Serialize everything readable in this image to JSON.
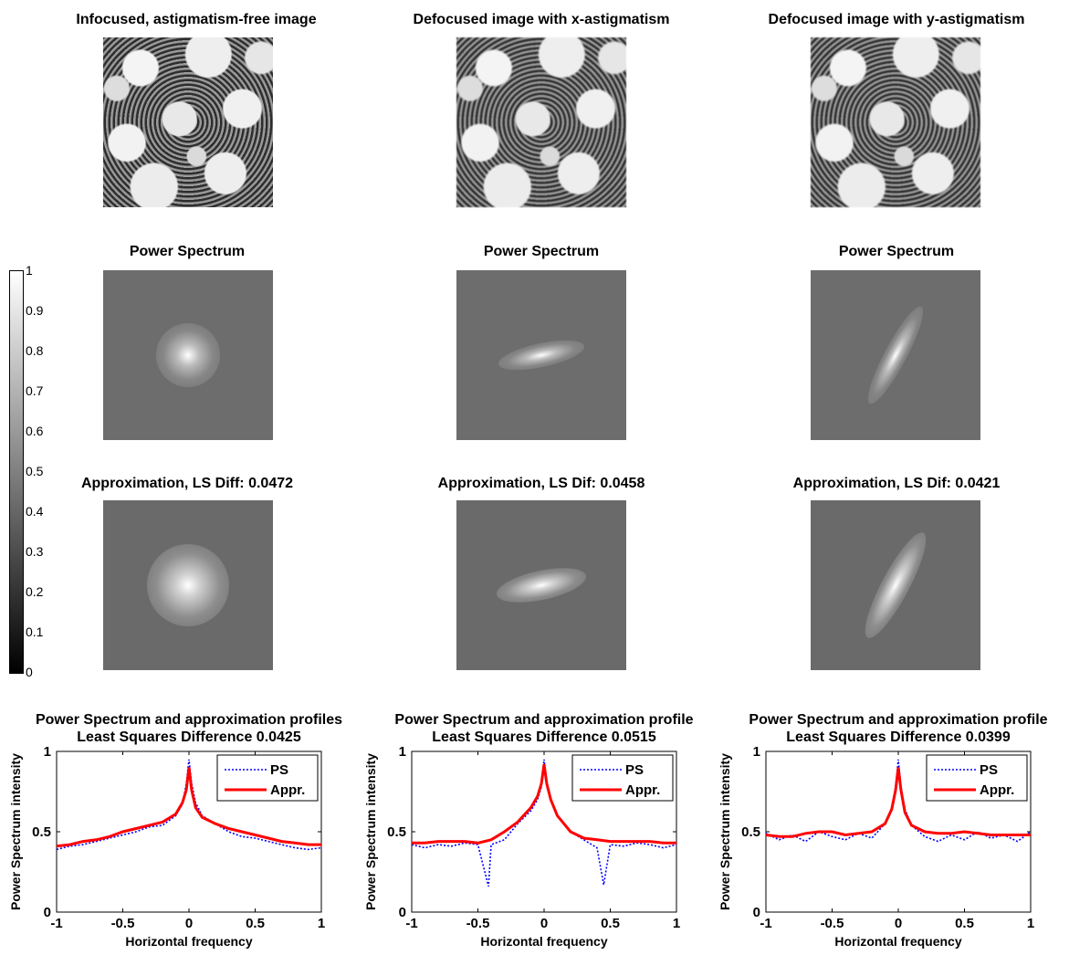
{
  "images": {
    "row1": [
      {
        "title": "Infocused, astigmatism-free image"
      },
      {
        "title": "Defocused image with x-astigmatism"
      },
      {
        "title": "Defocused image with y-astigmatism"
      }
    ],
    "row2": [
      {
        "title": "Power Spectrum"
      },
      {
        "title": "Power Spectrum"
      },
      {
        "title": "Power Spectrum"
      }
    ],
    "row3": [
      {
        "title": "Approximation, LS Diff: 0.0472"
      },
      {
        "title": "Approximation, LS Dif: 0.0458"
      },
      {
        "title": "Approximation, LS Dif: 0.0421"
      }
    ]
  },
  "colorbar": {
    "ticks": [
      "1",
      "0.9",
      "0.8",
      "0.7",
      "0.6",
      "0.5",
      "0.4",
      "0.3",
      "0.2",
      "0.1",
      "0"
    ]
  },
  "chart_data": [
    {
      "type": "line",
      "title": [
        "Power Spectrum and approximation profiles",
        "Least Squares Difference 0.0425"
      ],
      "xlabel": "Horizontal frequency",
      "ylabel": "Power Spectrum intensity",
      "xlim": [
        -1,
        1
      ],
      "ylim": [
        0,
        1
      ],
      "xticks": [
        "-1",
        "-0.5",
        "0",
        "0.5",
        "1"
      ],
      "yticks": [
        "0",
        "0.5",
        "1"
      ],
      "legend": "top-right",
      "series": [
        {
          "name": "PS",
          "color": "#0000ff",
          "style": "dotted",
          "x": [
            -1,
            -0.9,
            -0.8,
            -0.7,
            -0.6,
            -0.5,
            -0.4,
            -0.3,
            -0.2,
            -0.1,
            -0.05,
            -0.02,
            0,
            0.02,
            0.05,
            0.1,
            0.2,
            0.3,
            0.4,
            0.5,
            0.6,
            0.7,
            0.8,
            0.9,
            1
          ],
          "y": [
            0.39,
            0.41,
            0.42,
            0.44,
            0.46,
            0.48,
            0.5,
            0.53,
            0.54,
            0.6,
            0.67,
            0.8,
            0.95,
            0.8,
            0.68,
            0.6,
            0.55,
            0.5,
            0.47,
            0.46,
            0.44,
            0.42,
            0.4,
            0.39,
            0.4
          ]
        },
        {
          "name": "Appr.",
          "color": "#ff0000",
          "style": "solid",
          "x": [
            -1,
            -0.9,
            -0.8,
            -0.7,
            -0.6,
            -0.5,
            -0.4,
            -0.3,
            -0.2,
            -0.1,
            -0.05,
            -0.02,
            0,
            0.02,
            0.05,
            0.1,
            0.2,
            0.3,
            0.4,
            0.5,
            0.6,
            0.7,
            0.8,
            0.9,
            1
          ],
          "y": [
            0.41,
            0.42,
            0.44,
            0.45,
            0.47,
            0.5,
            0.52,
            0.54,
            0.56,
            0.61,
            0.68,
            0.76,
            0.9,
            0.76,
            0.65,
            0.59,
            0.55,
            0.52,
            0.5,
            0.48,
            0.46,
            0.44,
            0.43,
            0.42,
            0.42
          ]
        }
      ]
    },
    {
      "type": "line",
      "title": [
        "Power Spectrum and approximation profile",
        "Least Squares Difference 0.0515"
      ],
      "xlabel": "Horizontal frequency",
      "ylabel": "Power Spectrum intensity",
      "xlim": [
        -1,
        1
      ],
      "ylim": [
        0,
        1
      ],
      "xticks": [
        "-1",
        "-0.5",
        "0",
        "0.5",
        "1"
      ],
      "yticks": [
        "0",
        "0.5",
        "1"
      ],
      "legend": "top-right",
      "series": [
        {
          "name": "PS",
          "color": "#0000ff",
          "style": "dotted",
          "x": [
            -1,
            -0.9,
            -0.8,
            -0.7,
            -0.6,
            -0.5,
            -0.42,
            -0.4,
            -0.3,
            -0.2,
            -0.1,
            -0.05,
            -0.02,
            0,
            0.02,
            0.05,
            0.1,
            0.2,
            0.3,
            0.4,
            0.45,
            0.5,
            0.6,
            0.7,
            0.8,
            0.9,
            1
          ],
          "y": [
            0.42,
            0.4,
            0.42,
            0.41,
            0.43,
            0.42,
            0.16,
            0.42,
            0.45,
            0.55,
            0.63,
            0.7,
            0.78,
            0.95,
            0.78,
            0.7,
            0.6,
            0.5,
            0.45,
            0.4,
            0.17,
            0.42,
            0.41,
            0.43,
            0.42,
            0.4,
            0.42
          ]
        },
        {
          "name": "Appr.",
          "color": "#ff0000",
          "style": "solid",
          "x": [
            -1,
            -0.9,
            -0.8,
            -0.7,
            -0.6,
            -0.5,
            -0.4,
            -0.3,
            -0.2,
            -0.1,
            -0.05,
            -0.02,
            0,
            0.02,
            0.05,
            0.1,
            0.2,
            0.3,
            0.4,
            0.5,
            0.6,
            0.7,
            0.8,
            0.9,
            1
          ],
          "y": [
            0.43,
            0.43,
            0.44,
            0.44,
            0.44,
            0.43,
            0.45,
            0.5,
            0.56,
            0.65,
            0.72,
            0.8,
            0.92,
            0.8,
            0.7,
            0.6,
            0.5,
            0.46,
            0.45,
            0.44,
            0.44,
            0.44,
            0.44,
            0.43,
            0.43
          ]
        }
      ]
    },
    {
      "type": "line",
      "title": [
        "Power Spectrum and approximation profile",
        "Least Squares Difference 0.0399"
      ],
      "xlabel": "Horizontal frequency",
      "ylabel": "Power Spectrum intensity",
      "xlim": [
        -1,
        1
      ],
      "ylim": [
        0,
        1
      ],
      "xticks": [
        "-1",
        "-0.5",
        "0",
        "0.5",
        "1"
      ],
      "yticks": [
        "0",
        "0.5",
        "1"
      ],
      "legend": "top-right",
      "series": [
        {
          "name": "PS",
          "color": "#0000ff",
          "style": "dotted",
          "x": [
            -1,
            -0.9,
            -0.8,
            -0.7,
            -0.6,
            -0.5,
            -0.4,
            -0.3,
            -0.2,
            -0.1,
            -0.05,
            -0.02,
            0,
            0.02,
            0.05,
            0.1,
            0.2,
            0.3,
            0.4,
            0.5,
            0.6,
            0.7,
            0.8,
            0.9,
            1
          ],
          "y": [
            0.49,
            0.45,
            0.48,
            0.44,
            0.5,
            0.47,
            0.45,
            0.49,
            0.46,
            0.55,
            0.65,
            0.78,
            0.95,
            0.78,
            0.64,
            0.54,
            0.47,
            0.44,
            0.48,
            0.45,
            0.5,
            0.46,
            0.48,
            0.44,
            0.5
          ]
        },
        {
          "name": "Appr.",
          "color": "#ff0000",
          "style": "solid",
          "x": [
            -1,
            -0.9,
            -0.8,
            -0.7,
            -0.6,
            -0.5,
            -0.4,
            -0.3,
            -0.2,
            -0.1,
            -0.05,
            -0.02,
            0,
            0.02,
            0.05,
            0.1,
            0.2,
            0.3,
            0.4,
            0.5,
            0.6,
            0.7,
            0.8,
            0.9,
            1
          ],
          "y": [
            0.48,
            0.47,
            0.47,
            0.49,
            0.5,
            0.5,
            0.48,
            0.49,
            0.5,
            0.55,
            0.64,
            0.76,
            0.9,
            0.76,
            0.62,
            0.54,
            0.5,
            0.49,
            0.49,
            0.5,
            0.49,
            0.48,
            0.48,
            0.48,
            0.48
          ]
        }
      ]
    }
  ]
}
